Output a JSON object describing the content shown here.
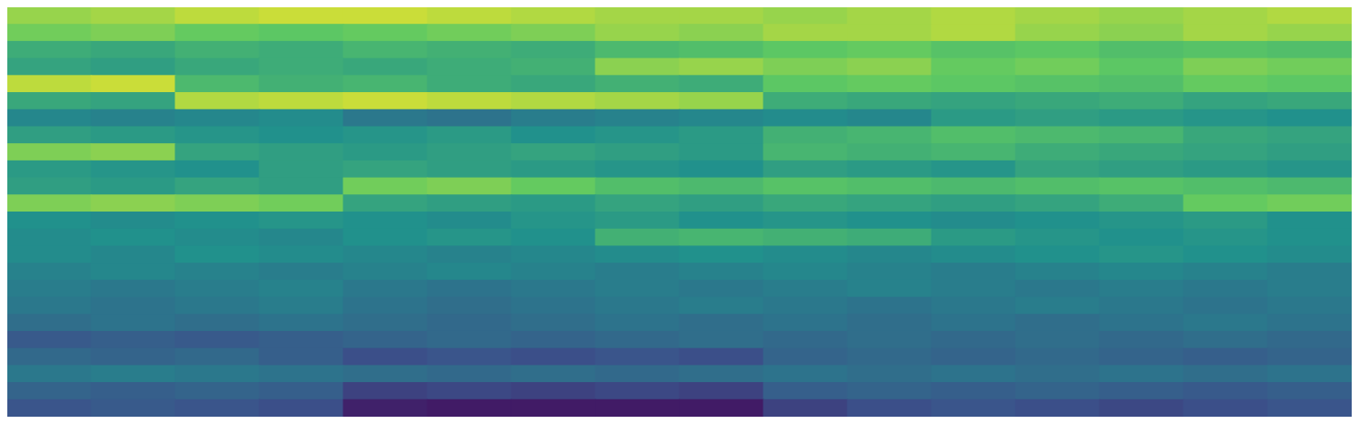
{
  "chart_data": {
    "type": "heatmap",
    "tick_labels": false,
    "color_range": [
      0,
      100
    ],
    "cells": [
      [
        84,
        86,
        90,
        92,
        92,
        90,
        88,
        86,
        86,
        84,
        86,
        88,
        86,
        84,
        86,
        88
      ],
      [
        78,
        80,
        76,
        74,
        76,
        78,
        80,
        84,
        82,
        86,
        86,
        88,
        84,
        82,
        86,
        84
      ],
      [
        62,
        60,
        64,
        62,
        66,
        64,
        62,
        68,
        70,
        74,
        76,
        72,
        74,
        70,
        72,
        70
      ],
      [
        58,
        56,
        60,
        62,
        60,
        62,
        64,
        82,
        84,
        80,
        82,
        76,
        78,
        74,
        80,
        78
      ],
      [
        90,
        92,
        68,
        64,
        66,
        62,
        60,
        64,
        62,
        74,
        76,
        74,
        72,
        70,
        76,
        74
      ],
      [
        60,
        58,
        88,
        90,
        92,
        90,
        88,
        86,
        84,
        62,
        60,
        58,
        60,
        62,
        58,
        60
      ],
      [
        46,
        44,
        46,
        48,
        40,
        38,
        42,
        44,
        46,
        48,
        46,
        54,
        56,
        54,
        52,
        50
      ],
      [
        56,
        54,
        52,
        50,
        52,
        54,
        50,
        52,
        54,
        64,
        66,
        70,
        68,
        66,
        60,
        58
      ],
      [
        80,
        82,
        58,
        56,
        54,
        56,
        58,
        56,
        54,
        66,
        64,
        66,
        62,
        60,
        58,
        56
      ],
      [
        54,
        52,
        50,
        56,
        58,
        56,
        54,
        52,
        50,
        56,
        54,
        52,
        58,
        56,
        54,
        52
      ],
      [
        56,
        54,
        58,
        56,
        78,
        80,
        76,
        70,
        68,
        72,
        70,
        68,
        70,
        72,
        70,
        68
      ],
      [
        80,
        82,
        80,
        78,
        58,
        56,
        54,
        58,
        56,
        60,
        58,
        56,
        58,
        62,
        76,
        78
      ],
      [
        50,
        48,
        50,
        52,
        50,
        48,
        52,
        54,
        50,
        52,
        50,
        48,
        50,
        52,
        54,
        50
      ],
      [
        48,
        50,
        48,
        46,
        50,
        52,
        50,
        64,
        66,
        64,
        62,
        54,
        52,
        50,
        52,
        50
      ],
      [
        48,
        46,
        50,
        48,
        46,
        44,
        46,
        48,
        50,
        48,
        46,
        48,
        50,
        52,
        50,
        48
      ],
      [
        44,
        46,
        44,
        42,
        44,
        46,
        44,
        42,
        44,
        46,
        44,
        42,
        44,
        46,
        44,
        42
      ],
      [
        42,
        40,
        42,
        44,
        40,
        38,
        40,
        42,
        40,
        42,
        44,
        42,
        40,
        42,
        40,
        42
      ],
      [
        40,
        38,
        40,
        42,
        38,
        36,
        38,
        40,
        42,
        40,
        38,
        40,
        42,
        40,
        38,
        40
      ],
      [
        36,
        38,
        36,
        38,
        36,
        34,
        36,
        38,
        36,
        38,
        36,
        38,
        36,
        38,
        40,
        38
      ],
      [
        28,
        30,
        28,
        30,
        32,
        34,
        32,
        34,
        36,
        34,
        36,
        34,
        36,
        34,
        36,
        34
      ],
      [
        34,
        32,
        34,
        30,
        24,
        26,
        24,
        26,
        24,
        32,
        34,
        32,
        34,
        32,
        30,
        32
      ],
      [
        40,
        42,
        40,
        38,
        36,
        34,
        36,
        34,
        36,
        38,
        36,
        38,
        36,
        38,
        36,
        38
      ],
      [
        32,
        30,
        32,
        30,
        20,
        22,
        20,
        22,
        20,
        30,
        32,
        30,
        32,
        30,
        28,
        30
      ],
      [
        26,
        28,
        26,
        24,
        10,
        8,
        8,
        8,
        8,
        20,
        24,
        26,
        24,
        22,
        24,
        26
      ]
    ]
  }
}
